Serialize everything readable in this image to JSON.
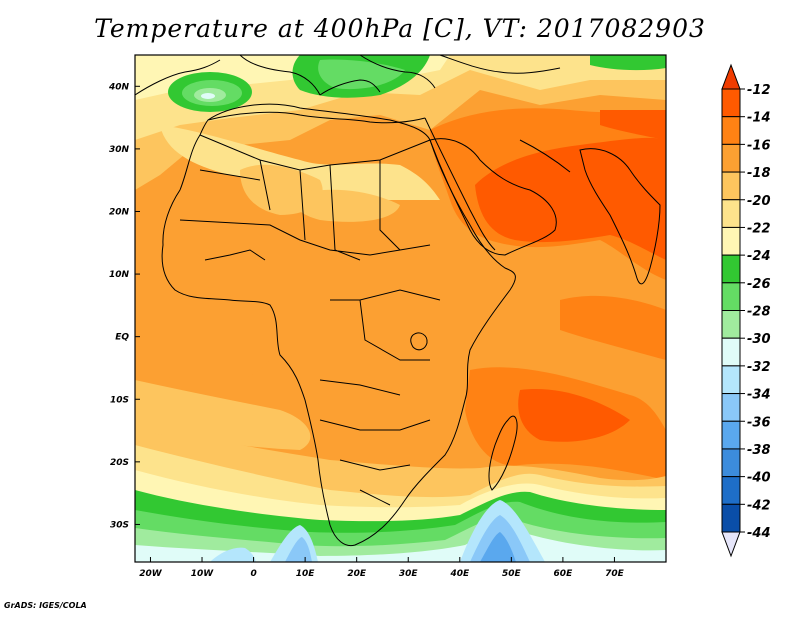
{
  "title": "Temperature at 400hPa [C], VT: 2017082903",
  "credit": "GrADS: IGES/COLA",
  "map": {
    "lon_range": [
      -23,
      80
    ],
    "lat_range": [
      -36,
      45
    ],
    "x_ticks": [
      {
        "lon": -20,
        "label": "20W"
      },
      {
        "lon": -10,
        "label": "10W"
      },
      {
        "lon": 0,
        "label": "0"
      },
      {
        "lon": 10,
        "label": "10E"
      },
      {
        "lon": 20,
        "label": "20E"
      },
      {
        "lon": 30,
        "label": "30E"
      },
      {
        "lon": 40,
        "label": "40E"
      },
      {
        "lon": 50,
        "label": "50E"
      },
      {
        "lon": 60,
        "label": "60E"
      },
      {
        "lon": 70,
        "label": "70E"
      }
    ],
    "y_ticks": [
      {
        "lat": 40,
        "label": "40N"
      },
      {
        "lat": 30,
        "label": "30N"
      },
      {
        "lat": 20,
        "label": "20N"
      },
      {
        "lat": 10,
        "label": "10N"
      },
      {
        "lat": 0,
        "label": "EQ"
      },
      {
        "lat": -10,
        "label": "10S"
      },
      {
        "lat": -20,
        "label": "20S"
      },
      {
        "lat": -30,
        "label": "30S"
      }
    ]
  },
  "colorbar": {
    "labels": [
      "-12",
      "-14",
      "-16",
      "-18",
      "-20",
      "-22",
      "-24",
      "-26",
      "-28",
      "-30",
      "-32",
      "-34",
      "-36",
      "-38",
      "-40",
      "-42",
      "-44"
    ],
    "colors": [
      "#ff5a00",
      "#ff8214",
      "#fca032",
      "#fdc55e",
      "#fde38c",
      "#fff6b4",
      "#32c832",
      "#64dc64",
      "#a0eb9e",
      "#e0fcf8",
      "#b4e6fc",
      "#8ac8f8",
      "#5aa8ee",
      "#3c8cdc",
      "#1e6ec8",
      "#0a4ea8",
      "#082468"
    ],
    "top_color": "#f03c00",
    "bottom_color": "#e6e6fa"
  }
}
